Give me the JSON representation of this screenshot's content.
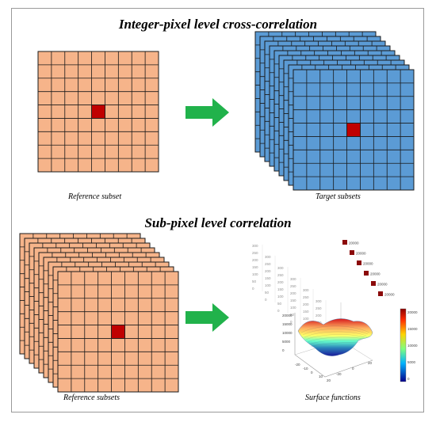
{
  "titles": {
    "integer": "Integer-pixel level cross-correlation",
    "subpixel": "Sub-pixel level correlation"
  },
  "captions": {
    "reference_subset": "Reference subset",
    "target_subsets": "Target subsets",
    "reference_subsets": "Reference subsets",
    "surface_functions": "Surface functions"
  },
  "colors": {
    "reference_fill": "#f6b48a",
    "target_fill": "#5b9bd5",
    "center_pixel": "#c00000",
    "grid_line": "#1a1a1a",
    "arrow": "#21b24b",
    "frame": "#9a9a9a"
  },
  "grid": {
    "rows": 9,
    "cols": 9,
    "center_row": 4,
    "center_col": 4
  },
  "surface_plot": {
    "colorbar_ticks": [
      "20000",
      "15000",
      "10000",
      "5000",
      "0"
    ],
    "z_ticks": [
      "20000",
      "15000",
      "10000",
      "5000",
      "0"
    ],
    "x_ticks": [
      "-20",
      "-10",
      "0",
      "10",
      "20"
    ],
    "y_ticks": [
      "-20",
      "0",
      "20"
    ],
    "back_axis_ticks": [
      "300",
      "250",
      "200",
      "150",
      "100",
      "50",
      "0"
    ],
    "marker_label": "20000"
  }
}
